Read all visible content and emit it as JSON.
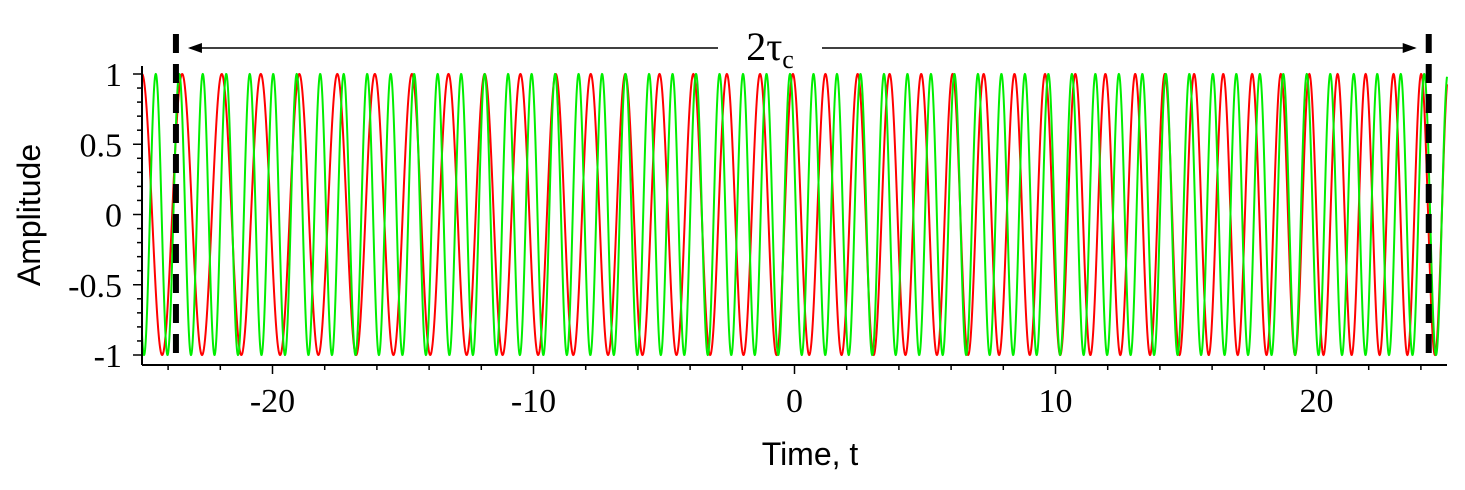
{
  "chart_data": {
    "type": "line",
    "title": "",
    "xlabel": "Time, t",
    "ylabel": "Amplitude",
    "xlim": [
      -25,
      25
    ],
    "ylim": [
      -1,
      1
    ],
    "xticks": [
      -20,
      -10,
      0,
      10,
      20
    ],
    "xtick_labels": [
      "-20",
      "-10",
      "0",
      "10",
      "20"
    ],
    "yticks": [
      -1,
      -0.5,
      0,
      0.5,
      1
    ],
    "ytick_labels": [
      "-1",
      "-0.5",
      "0",
      "0.5",
      "1"
    ],
    "grid": false,
    "legend": false,
    "series": [
      {
        "color": "#ff0000",
        "function": "cos(2*pi*t/T(t))",
        "period_at_left": 1.55,
        "period_at_right": 1.05
      },
      {
        "color": "#00ee00",
        "function": "cos(2*pi*t/0.9)"
      }
    ],
    "annotation": {
      "label_main": "2τ",
      "label_sub": "c",
      "left_t": -23.7,
      "right_t": 24.3,
      "color": "#000000"
    }
  }
}
